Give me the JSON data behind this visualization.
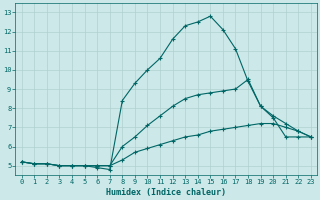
{
  "title": "",
  "xlabel": "Humidex (Indice chaleur)",
  "background_color": "#cce8e8",
  "grid_color": "#b0d0d0",
  "line_color": "#006666",
  "xlim": [
    -0.5,
    23.5
  ],
  "ylim": [
    4.5,
    13.5
  ],
  "xticks": [
    0,
    1,
    2,
    3,
    4,
    5,
    6,
    7,
    8,
    9,
    10,
    11,
    12,
    13,
    14,
    15,
    16,
    17,
    18,
    19,
    20,
    21,
    22,
    23
  ],
  "yticks": [
    5,
    6,
    7,
    8,
    9,
    10,
    11,
    12,
    13
  ],
  "line1_y": [
    5.2,
    5.1,
    5.1,
    5.0,
    5.0,
    5.0,
    4.9,
    4.8,
    8.4,
    9.3,
    10.0,
    10.6,
    11.6,
    12.3,
    12.5,
    12.8,
    12.1,
    11.1,
    9.4,
    8.1,
    7.5,
    6.5,
    6.5,
    6.5
  ],
  "line2_y": [
    5.2,
    5.1,
    5.1,
    5.0,
    5.0,
    5.0,
    5.0,
    5.0,
    6.0,
    6.5,
    7.1,
    7.6,
    8.1,
    8.5,
    8.7,
    8.8,
    8.9,
    9.0,
    9.5,
    8.1,
    7.6,
    7.2,
    6.8,
    6.5
  ],
  "line3_y": [
    5.2,
    5.1,
    5.1,
    5.0,
    5.0,
    5.0,
    5.0,
    5.0,
    5.3,
    5.7,
    5.9,
    6.1,
    6.3,
    6.5,
    6.6,
    6.8,
    6.9,
    7.0,
    7.1,
    7.2,
    7.2,
    7.0,
    6.8,
    6.5
  ],
  "tick_fontsize": 5.0,
  "xlabel_fontsize": 6.0,
  "marker_size": 3,
  "linewidth": 0.8
}
